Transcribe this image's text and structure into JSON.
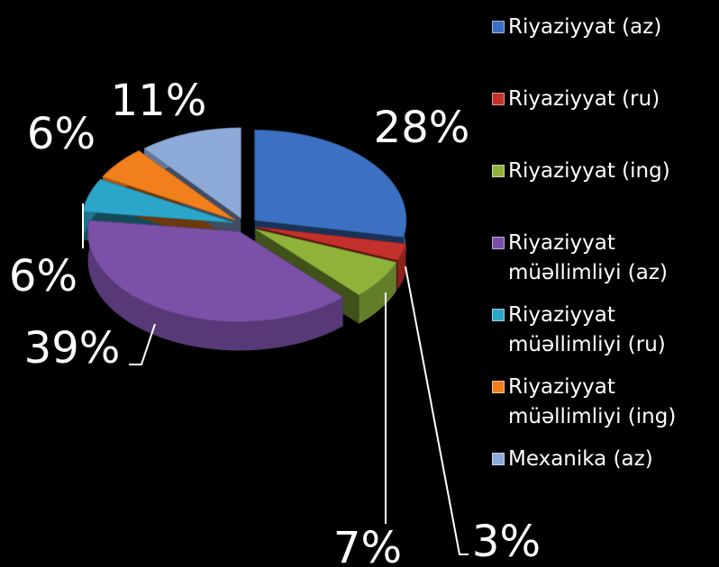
{
  "chart_data": {
    "type": "pie",
    "categories": [
      "Riyaziyyat (az)",
      "Riyaziyyat (ru)",
      "Riyaziyyat (ing)",
      "Riyaziyyat müəllimliyi (az)",
      "Riyaziyyat müəllimliyi (ru)",
      "Riyaziyyat müəllimliyi (ing)",
      "Mexanika (az)"
    ],
    "values": [
      28,
      3,
      7,
      39,
      6,
      6,
      11
    ],
    "value_labels": [
      "28%",
      "3%",
      "7%",
      "39%",
      "6%",
      "6%",
      "11%"
    ],
    "colors": [
      "#3b70c2",
      "#c4302b",
      "#8fb33a",
      "#7b51a8",
      "#2ba6c9",
      "#f07f1c",
      "#8eaad9"
    ],
    "legend": "right"
  }
}
